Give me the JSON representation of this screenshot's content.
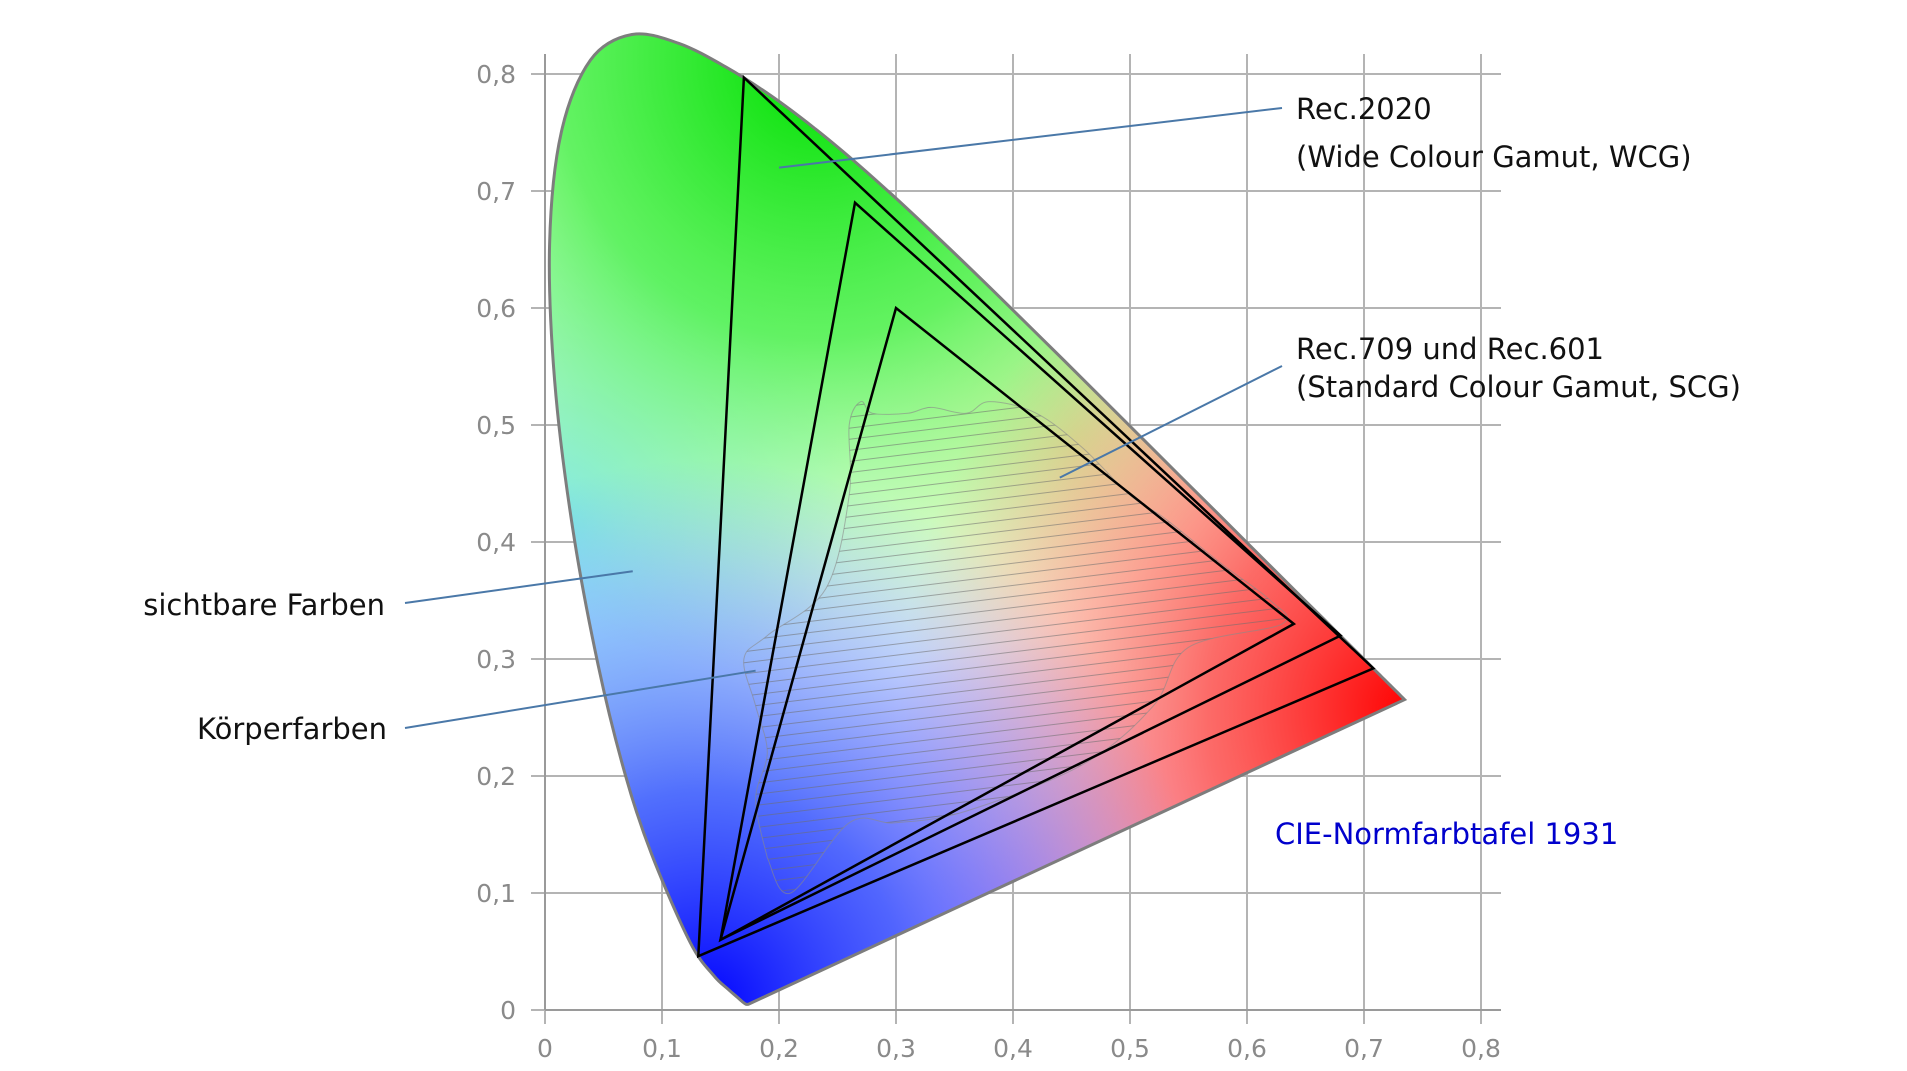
{
  "chart_data": {
    "type": "chromaticity-diagram",
    "title": "CIE-Normfarbtafel 1931",
    "title_color": "#0000cc",
    "xlim": [
      0,
      0.8
    ],
    "ylim": [
      0,
      0.8
    ],
    "x_ticks": [
      "0",
      "0,1",
      "0,2",
      "0,3",
      "0,4",
      "0,5",
      "0,6",
      "0,7",
      "0,8"
    ],
    "y_ticks": [
      "0",
      "0,1",
      "0,2",
      "0,3",
      "0,4",
      "0,5",
      "0,6",
      "0,7",
      "0,8"
    ],
    "grid": true,
    "spectral_locus": [
      [
        0.1741,
        0.005
      ],
      [
        0.1738,
        0.0049
      ],
      [
        0.1733,
        0.0048
      ],
      [
        0.1726,
        0.0048
      ],
      [
        0.1714,
        0.0051
      ],
      [
        0.1689,
        0.0069
      ],
      [
        0.1644,
        0.0109
      ],
      [
        0.1566,
        0.0177
      ],
      [
        0.144,
        0.0297
      ],
      [
        0.1241,
        0.0578
      ],
      [
        0.0913,
        0.1327
      ],
      [
        0.0687,
        0.2007
      ],
      [
        0.0454,
        0.295
      ],
      [
        0.0235,
        0.4127
      ],
      [
        0.0082,
        0.5384
      ],
      [
        0.0039,
        0.6548
      ],
      [
        0.0139,
        0.7502
      ],
      [
        0.0389,
        0.812
      ],
      [
        0.0743,
        0.8338
      ],
      [
        0.1142,
        0.8262
      ],
      [
        0.1547,
        0.8059
      ],
      [
        0.1929,
        0.7816
      ],
      [
        0.2296,
        0.7543
      ],
      [
        0.2658,
        0.7243
      ],
      [
        0.3016,
        0.6923
      ],
      [
        0.3373,
        0.6589
      ],
      [
        0.3731,
        0.6245
      ],
      [
        0.4087,
        0.5896
      ],
      [
        0.4441,
        0.5547
      ],
      [
        0.4788,
        0.5202
      ],
      [
        0.5125,
        0.4866
      ],
      [
        0.5448,
        0.4544
      ],
      [
        0.5752,
        0.4242
      ],
      [
        0.6029,
        0.3965
      ],
      [
        0.627,
        0.3725
      ],
      [
        0.6482,
        0.3514
      ],
      [
        0.6658,
        0.334
      ],
      [
        0.6801,
        0.3197
      ],
      [
        0.6915,
        0.3083
      ],
      [
        0.7006,
        0.2993
      ],
      [
        0.7079,
        0.292
      ],
      [
        0.714,
        0.2859
      ],
      [
        0.719,
        0.2809
      ],
      [
        0.723,
        0.277
      ],
      [
        0.726,
        0.274
      ],
      [
        0.7283,
        0.2717
      ],
      [
        0.73,
        0.27
      ],
      [
        0.7311,
        0.2689
      ],
      [
        0.732,
        0.268
      ],
      [
        0.7327,
        0.2673
      ],
      [
        0.7334,
        0.2666
      ],
      [
        0.734,
        0.266
      ],
      [
        0.7344,
        0.2656
      ],
      [
        0.7346,
        0.2654
      ],
      [
        0.7347,
        0.2653
      ]
    ],
    "gamuts": [
      {
        "name": "Rec.2020",
        "points": [
          [
            0.708,
            0.292
          ],
          [
            0.17,
            0.797
          ],
          [
            0.131,
            0.046
          ]
        ]
      },
      {
        "name": "",
        "points": [
          [
            0.68,
            0.32
          ],
          [
            0.265,
            0.69
          ],
          [
            0.15,
            0.06
          ]
        ]
      },
      {
        "name": "Rec.709",
        "points": [
          [
            0.64,
            0.33
          ],
          [
            0.3,
            0.6
          ],
          [
            0.15,
            0.06
          ]
        ]
      }
    ],
    "koerperfarben_region": [
      [
        0.19,
        0.13
      ],
      [
        0.21,
        0.1
      ],
      [
        0.26,
        0.16
      ],
      [
        0.3,
        0.16
      ],
      [
        0.36,
        0.17
      ],
      [
        0.46,
        0.21
      ],
      [
        0.52,
        0.26
      ],
      [
        0.55,
        0.31
      ],
      [
        0.63,
        0.33
      ],
      [
        0.62,
        0.35
      ],
      [
        0.58,
        0.38
      ],
      [
        0.53,
        0.42
      ],
      [
        0.5,
        0.44
      ],
      [
        0.46,
        0.48
      ],
      [
        0.42,
        0.51
      ],
      [
        0.38,
        0.52
      ],
      [
        0.36,
        0.51
      ],
      [
        0.33,
        0.515
      ],
      [
        0.31,
        0.51
      ],
      [
        0.28,
        0.51
      ],
      [
        0.27,
        0.52
      ],
      [
        0.26,
        0.5
      ],
      [
        0.26,
        0.44
      ],
      [
        0.24,
        0.36
      ],
      [
        0.19,
        0.32
      ],
      [
        0.17,
        0.3
      ],
      [
        0.18,
        0.26
      ],
      [
        0.19,
        0.22
      ],
      [
        0.18,
        0.18
      ]
    ],
    "annotations": [
      {
        "text": "Rec.2020",
        "point": [
          0.2,
          0.72
        ]
      },
      {
        "text": "(Wide Colour Gamut, WCG)",
        "point": null
      },
      {
        "text": "Rec.709 und Rec.601",
        "point": [
          0.44,
          0.455
        ]
      },
      {
        "text": "(Standard Colour Gamut, SCG)",
        "point": null
      },
      {
        "text": "sichtbare Farben",
        "point": [
          0.075,
          0.375
        ]
      },
      {
        "text": "Körperfarben",
        "point": [
          0.18,
          0.29
        ]
      }
    ]
  }
}
